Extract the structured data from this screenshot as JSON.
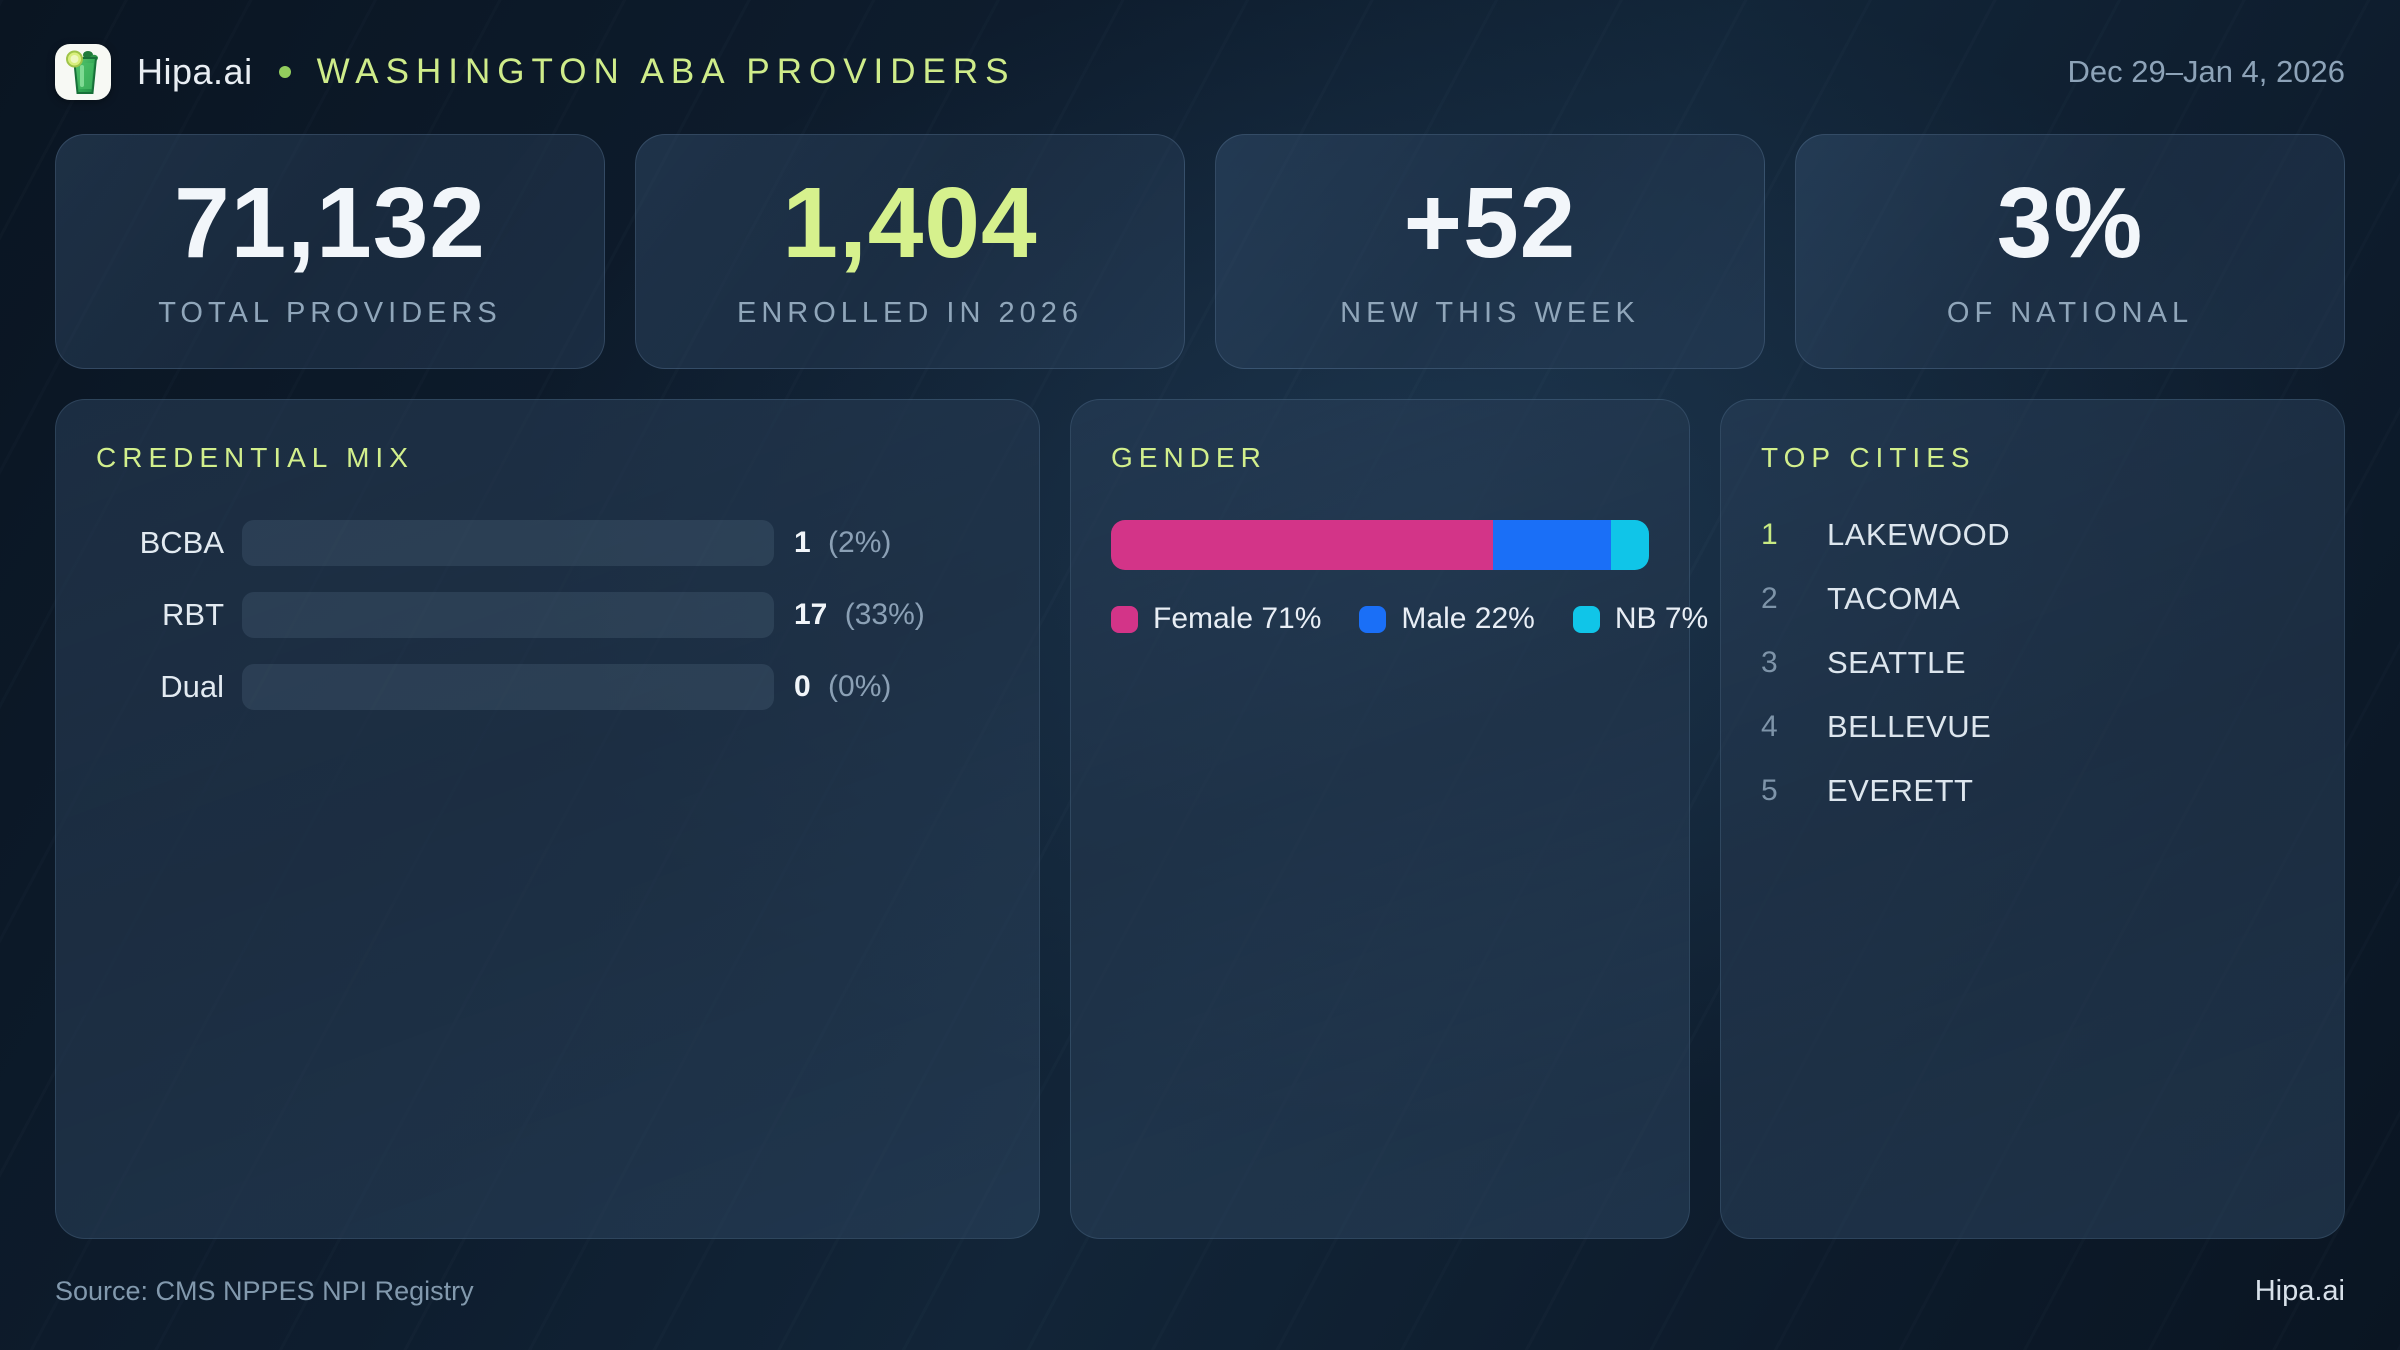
{
  "header": {
    "brand": "Hipa.ai",
    "title": "WASHINGTON ABA PROVIDERS",
    "date_range": "Dec 29–Jan 4, 2026",
    "logo_icon": "mojito-glass-icon"
  },
  "stats": [
    {
      "value": "71,132",
      "label": "TOTAL PROVIDERS",
      "accent": "accent-white"
    },
    {
      "value": "1,404",
      "label": "ENROLLED IN 2026",
      "accent": "accent-green"
    },
    {
      "value": "+52",
      "label": "NEW THIS WEEK",
      "accent": "accent-white"
    },
    {
      "value": "3%",
      "label": "OF NATIONAL",
      "accent": "accent-white"
    }
  ],
  "credential_mix": {
    "title": "CREDENTIAL MIX",
    "rows": [
      {
        "label": "BCBA",
        "count": "1",
        "pct_text": "(2%)",
        "bar_pct": 6,
        "color": "#1a6ff7"
      },
      {
        "label": "RBT",
        "count": "17",
        "pct_text": "(33%)",
        "bar_pct": 100,
        "color": "#1d8a57"
      },
      {
        "label": "Dual",
        "count": "0",
        "pct_text": "(0%)",
        "bar_pct": 0,
        "color": "transparent"
      }
    ]
  },
  "gender": {
    "title": "GENDER",
    "segments": [
      {
        "label": "Female",
        "pct": 71,
        "legend_text": "Female 71%",
        "color": "#d33488"
      },
      {
        "label": "Male",
        "pct": 22,
        "legend_text": "Male 22%",
        "color": "#1a6ff7"
      },
      {
        "label": "NB",
        "pct": 7,
        "legend_text": "NB 7%",
        "color": "#10c5e8"
      }
    ]
  },
  "top_cities": {
    "title": "TOP CITIES",
    "items": [
      {
        "rank": "1",
        "name": "LAKEWOOD"
      },
      {
        "rank": "2",
        "name": "TACOMA"
      },
      {
        "rank": "3",
        "name": "SEATTLE"
      },
      {
        "rank": "4",
        "name": "BELLEVUE"
      },
      {
        "rank": "5",
        "name": "EVERETT"
      }
    ]
  },
  "footer": {
    "source": "Source: CMS NPPES NPI Registry",
    "brand": "Hipa.ai"
  },
  "colors": {
    "accent_green_text": "#d6f18d",
    "title_green": "#cfec8a",
    "bar_blue": "#1a6ff7",
    "bar_green": "#1d8a57",
    "bar_pink": "#d33488",
    "bar_cyan": "#10c5e8",
    "muted_label": "#90a6ba",
    "background": "#0e1d2e"
  },
  "chart_data": [
    {
      "type": "bar",
      "title": "CREDENTIAL MIX",
      "categories": [
        "BCBA",
        "RBT",
        "Dual"
      ],
      "values": [
        1,
        17,
        0
      ],
      "percent_of_total": [
        2,
        33,
        0
      ],
      "orientation": "horizontal",
      "xlabel": "",
      "ylabel": "",
      "grid": false,
      "colors": [
        "#1a6ff7",
        "#1d8a57",
        "transparent"
      ]
    },
    {
      "type": "bar",
      "subtype": "stacked-horizontal-100pct",
      "title": "GENDER",
      "categories": [
        "Gender split"
      ],
      "series": [
        {
          "name": "Female",
          "values": [
            71
          ],
          "color": "#d33488"
        },
        {
          "name": "Male",
          "values": [
            22
          ],
          "color": "#1a6ff7"
        },
        {
          "name": "NB",
          "values": [
            7
          ],
          "color": "#10c5e8"
        }
      ],
      "legend_position": "bottom",
      "grid": false
    },
    {
      "type": "table",
      "title": "TOP CITIES",
      "columns": [
        "rank",
        "city"
      ],
      "rows": [
        [
          "1",
          "LAKEWOOD"
        ],
        [
          "2",
          "TACOMA"
        ],
        [
          "3",
          "SEATTLE"
        ],
        [
          "4",
          "BELLEVUE"
        ],
        [
          "5",
          "EVERETT"
        ]
      ]
    }
  ]
}
